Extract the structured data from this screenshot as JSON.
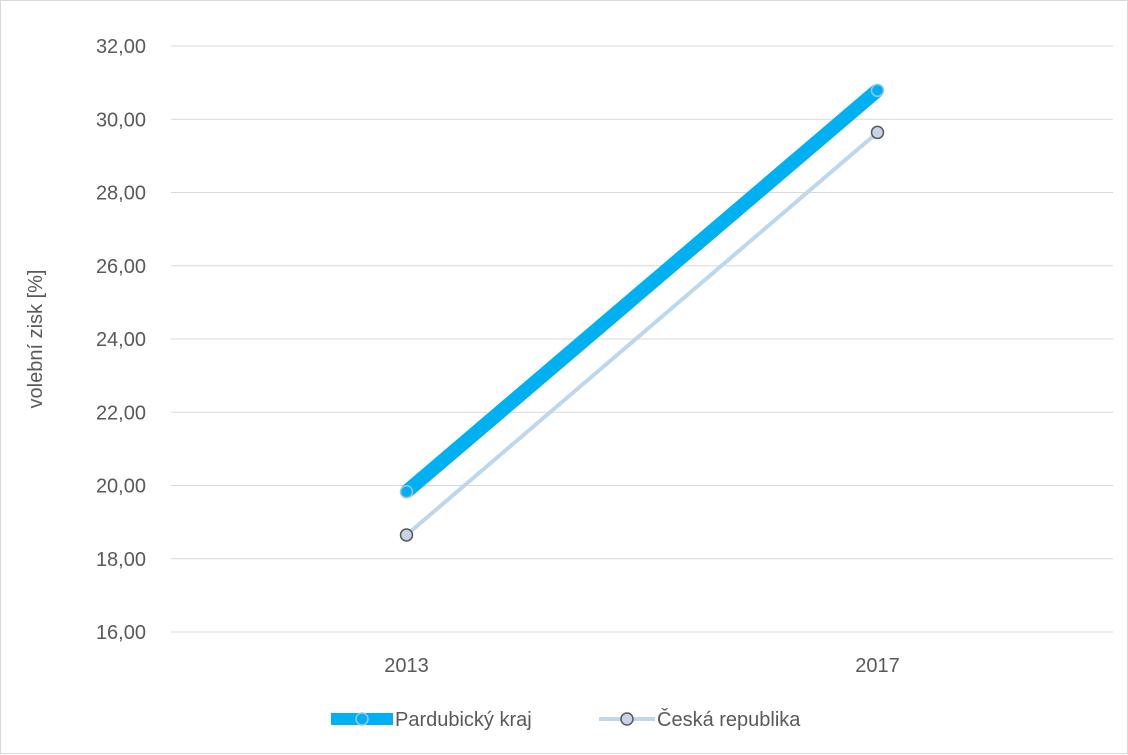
{
  "chart_data": {
    "type": "line",
    "title": "",
    "xlabel": "",
    "ylabel": "volební zisk [%]",
    "categories": [
      "2013",
      "2017"
    ],
    "ylim": [
      16,
      32
    ],
    "ytick_step": 2,
    "ytick_labels": [
      "16,00",
      "18,00",
      "20,00",
      "22,00",
      "24,00",
      "26,00",
      "28,00",
      "30,00",
      "32,00"
    ],
    "grid": true,
    "legend_position": "bottom",
    "series": [
      {
        "name": "Pardubický kraj",
        "values": [
          19.83,
          30.79
        ],
        "color": "#00b0f0",
        "marker_fill": "#00b0f0",
        "marker_stroke": "#9dc3e6",
        "line_weight": "thick"
      },
      {
        "name": "Česká republika",
        "values": [
          18.65,
          29.64
        ],
        "color": "#bdd7ee",
        "marker_fill": "#c7d3e6",
        "marker_stroke": "#595959",
        "line_weight": "thin"
      }
    ]
  }
}
